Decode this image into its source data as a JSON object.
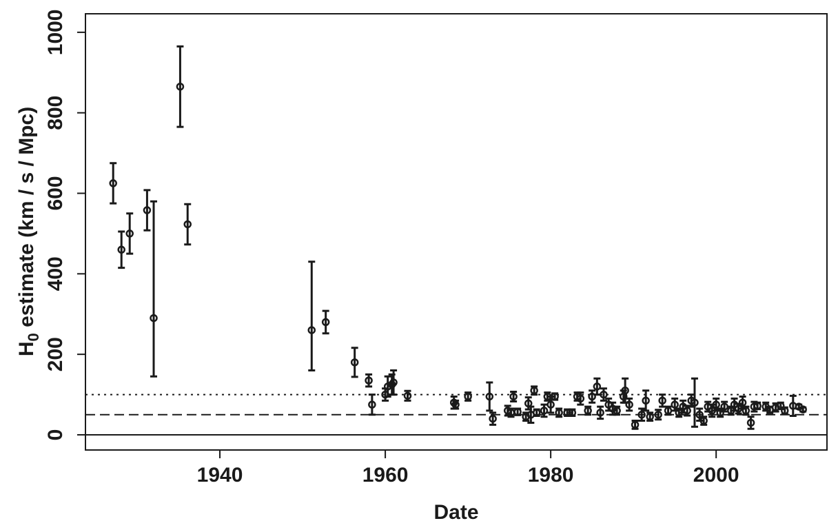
{
  "chart_data": {
    "type": "errorbar",
    "x_label": "Date",
    "y_label": {
      "main": "H",
      "sub": "0",
      "rest": " estimate (km / s / Mpc)"
    },
    "color": "#1a1a1a",
    "xlim": [
      1923.75,
      2013.4
    ],
    "ylim": [
      -37.7,
      1046
    ],
    "xticks": [
      1940,
      1960,
      1980,
      2000
    ],
    "yticks": [
      0,
      200,
      400,
      600,
      800,
      1000
    ],
    "hlines": [
      {
        "value": 0,
        "dash": "solid"
      },
      {
        "value": 50,
        "dash": "dashed"
      },
      {
        "value": 100,
        "dash": "dotted"
      }
    ],
    "x": [
      1927.1,
      1928.1,
      1929.1,
      1931.2,
      1932.0,
      1935.2,
      1936.1,
      1951.1,
      1952.8,
      1956.3,
      1958.0,
      1958.4,
      1960.0,
      1960.3,
      1960.8,
      1961.0,
      1962.7,
      1968.3,
      1968.5,
      1970.0,
      1972.6,
      1973.0,
      1974.8,
      1975.2,
      1975.5,
      1976.0,
      1977.0,
      1977.3,
      1977.6,
      1978.0,
      1978.3,
      1979.2,
      1979.6,
      1980.0,
      1980.5,
      1981.0,
      1982.0,
      1982.6,
      1983.2,
      1983.6,
      1984.5,
      1985.0,
      1985.6,
      1986.0,
      1986.4,
      1987.0,
      1987.5,
      1988.0,
      1988.8,
      1989.0,
      1989.5,
      1990.2,
      1991.0,
      1991.5,
      1992.0,
      1993.0,
      1993.5,
      1994.2,
      1995.0,
      1995.5,
      1996.0,
      1996.5,
      1997.0,
      1997.4,
      1998.0,
      1998.5,
      1999.0,
      1999.5,
      2000.0,
      2000.5,
      2001.0,
      2001.8,
      2002.2,
      2002.7,
      2003.2,
      2003.6,
      2004.2,
      2004.6,
      2005.0,
      2006.0,
      2006.5,
      2007.2,
      2007.8,
      2008.3,
      2009.3,
      2010.0,
      2010.5
    ],
    "values": [
      625,
      460,
      500,
      558,
      290,
      865,
      523,
      260,
      280,
      180,
      135,
      75,
      100,
      120,
      125,
      130,
      97,
      80,
      75,
      95,
      95,
      40,
      60,
      55,
      95,
      57,
      45,
      78,
      50,
      110,
      55,
      60,
      95,
      75,
      95,
      55,
      55,
      55,
      95,
      90,
      60,
      95,
      120,
      55,
      100,
      75,
      65,
      60,
      95,
      110,
      75,
      25,
      50,
      85,
      45,
      50,
      85,
      60,
      75,
      55,
      70,
      60,
      85,
      80,
      50,
      35,
      70,
      60,
      75,
      55,
      70,
      60,
      75,
      65,
      80,
      60,
      30,
      70,
      72,
      70,
      62,
      68,
      72,
      60,
      72,
      70,
      63
    ],
    "err_low": [
      50,
      45,
      50,
      50,
      145,
      100,
      50,
      100,
      28,
      36,
      15,
      25,
      15,
      25,
      25,
      30,
      12,
      15,
      10,
      10,
      35,
      15,
      12,
      10,
      12,
      8,
      10,
      15,
      20,
      10,
      8,
      15,
      10,
      20,
      8,
      10,
      8,
      8,
      10,
      15,
      10,
      15,
      20,
      15,
      15,
      15,
      15,
      10,
      15,
      30,
      15,
      10,
      15,
      25,
      10,
      12,
      15,
      10,
      15,
      10,
      15,
      12,
      15,
      60,
      15,
      10,
      12,
      15,
      15,
      10,
      12,
      10,
      15,
      12,
      15,
      10,
      15,
      12,
      8,
      10,
      8,
      10,
      8,
      8,
      25,
      5,
      5
    ],
    "err_high": [
      50,
      45,
      50,
      50,
      290,
      100,
      50,
      170,
      28,
      36,
      15,
      25,
      15,
      25,
      25,
      30,
      12,
      15,
      10,
      10,
      35,
      15,
      12,
      10,
      12,
      8,
      10,
      15,
      20,
      10,
      8,
      15,
      10,
      20,
      8,
      10,
      8,
      8,
      10,
      15,
      10,
      15,
      20,
      15,
      15,
      15,
      15,
      10,
      15,
      30,
      15,
      10,
      15,
      25,
      10,
      12,
      15,
      10,
      15,
      10,
      15,
      12,
      15,
      60,
      15,
      10,
      12,
      15,
      15,
      10,
      12,
      10,
      15,
      12,
      15,
      10,
      15,
      12,
      8,
      10,
      8,
      10,
      8,
      8,
      25,
      5,
      5
    ]
  }
}
